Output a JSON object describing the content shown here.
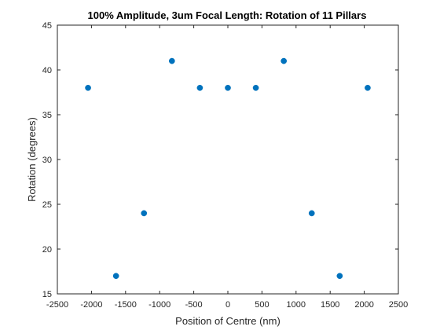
{
  "chart_data": {
    "type": "scatter",
    "title": "100% Amplitude, 3um Focal Length: Rotation of 11 Pillars",
    "xlabel": "Position of Centre (nm)",
    "ylabel": "Rotation (degrees)",
    "xlim": [
      -2500,
      2500
    ],
    "ylim": [
      15,
      45
    ],
    "xticks": [
      -2500,
      -2000,
      -1500,
      -1000,
      -500,
      0,
      500,
      1000,
      1500,
      2000,
      2500
    ],
    "yticks": [
      15,
      20,
      25,
      30,
      35,
      40,
      45
    ],
    "grid": false,
    "legend": "none",
    "marker_color": "#0072BD",
    "series": [
      {
        "x": [
          -2050,
          -1640,
          -1230,
          -820,
          -410,
          0,
          410,
          820,
          1230,
          1640,
          2050
        ],
        "y": [
          38,
          17,
          24,
          41,
          38,
          38,
          38,
          41,
          24,
          17,
          38
        ]
      }
    ]
  }
}
